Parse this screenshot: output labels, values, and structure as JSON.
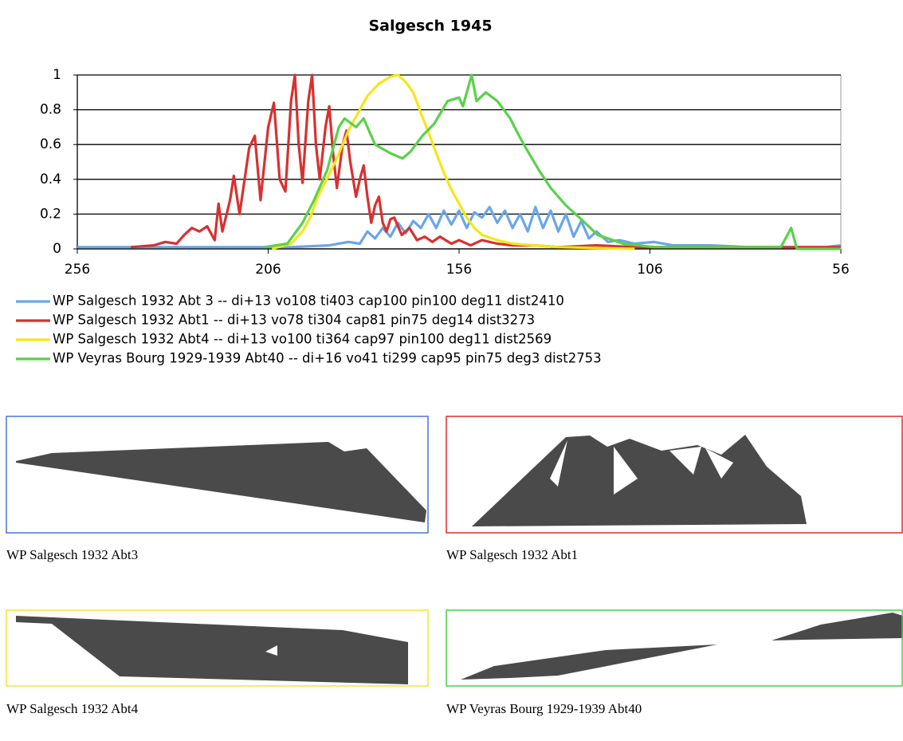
{
  "chart_data": {
    "type": "line",
    "title": "Salgesch 1945",
    "xlim": [
      256,
      56
    ],
    "xticks": [
      256,
      206,
      156,
      106,
      56
    ],
    "ylim": [
      0,
      1
    ],
    "yticks": [
      0,
      0.2,
      0.4,
      0.6,
      0.8,
      1
    ],
    "grid": true,
    "series": [
      {
        "name": "WP Salgesch 1932 Abt 3 -- di+13 vo108 ti403 cap100 pin100 deg11 dist2410",
        "color": "#6aa6e8",
        "x": [
          256,
          230,
          200,
          190,
          185,
          182,
          180,
          178,
          176,
          174,
          172,
          170,
          168,
          166,
          164,
          162,
          160,
          158,
          156,
          154,
          152,
          150,
          148,
          146,
          144,
          142,
          140,
          138,
          136,
          134,
          132,
          130,
          128,
          126,
          124,
          122,
          120,
          117,
          114,
          110,
          105,
          100,
          90,
          80,
          70,
          60,
          56
        ],
        "values": [
          0.01,
          0.01,
          0.01,
          0.02,
          0.04,
          0.03,
          0.1,
          0.06,
          0.12,
          0.07,
          0.15,
          0.09,
          0.16,
          0.12,
          0.2,
          0.12,
          0.22,
          0.14,
          0.22,
          0.12,
          0.21,
          0.18,
          0.24,
          0.15,
          0.22,
          0.12,
          0.2,
          0.1,
          0.24,
          0.12,
          0.22,
          0.1,
          0.2,
          0.07,
          0.16,
          0.06,
          0.1,
          0.04,
          0.05,
          0.03,
          0.04,
          0.02,
          0.02,
          0.01,
          0.01,
          0.01,
          0.02
        ]
      },
      {
        "name": "WP Salgesch 1932 Abt1 -- di+13 vo78 ti304 cap81 pin75 deg14 dist3273",
        "color": "#d93030",
        "x": [
          242,
          236,
          233,
          230,
          228,
          226,
          224,
          222,
          220,
          219,
          218,
          216,
          215,
          213.5,
          211,
          209.5,
          208,
          206,
          204.5,
          203,
          201.5,
          200,
          199,
          198,
          197,
          195.5,
          194.5,
          193.5,
          192.5,
          191,
          190,
          189,
          188,
          186.5,
          185.5,
          184.5,
          183,
          182,
          181,
          180,
          179,
          178,
          177,
          176,
          175,
          174,
          173,
          171,
          169,
          167,
          165,
          163,
          161,
          158,
          156,
          153,
          150,
          146,
          142,
          136,
          130,
          120,
          110,
          100,
          90,
          75,
          62,
          56
        ],
        "values": [
          0.01,
          0.02,
          0.04,
          0.03,
          0.08,
          0.12,
          0.1,
          0.13,
          0.05,
          0.26,
          0.1,
          0.28,
          0.42,
          0.2,
          0.58,
          0.65,
          0.28,
          0.7,
          0.84,
          0.4,
          0.33,
          0.85,
          1.0,
          0.6,
          0.38,
          0.85,
          1.0,
          0.6,
          0.4,
          0.7,
          0.82,
          0.55,
          0.35,
          0.6,
          0.68,
          0.5,
          0.3,
          0.4,
          0.48,
          0.3,
          0.15,
          0.25,
          0.3,
          0.15,
          0.1,
          0.17,
          0.18,
          0.08,
          0.12,
          0.05,
          0.07,
          0.04,
          0.07,
          0.03,
          0.05,
          0.02,
          0.05,
          0.03,
          0.02,
          0.02,
          0.01,
          0.02,
          0.01,
          0.01,
          0.01,
          0.01,
          0.01,
          0.01
        ]
      },
      {
        "name": "WP Salgesch 1932 Abt4 -- di+13 vo100 ti364 cap97 pin100 deg11 dist2569",
        "color": "#f5e61a",
        "x": [
          205,
          200,
          197,
          195,
          193,
          190,
          188,
          185,
          182,
          180,
          177,
          174,
          172,
          170,
          168,
          166,
          164,
          162,
          160,
          158,
          156,
          154,
          152,
          150,
          146,
          142,
          136,
          130,
          120,
          110
        ],
        "values": [
          0,
          0.03,
          0.1,
          0.18,
          0.3,
          0.43,
          0.52,
          0.68,
          0.8,
          0.88,
          0.95,
          0.99,
          1.0,
          0.96,
          0.9,
          0.78,
          0.67,
          0.55,
          0.44,
          0.34,
          0.26,
          0.18,
          0.12,
          0.08,
          0.05,
          0.03,
          0.02,
          0.01,
          0.005,
          0
        ]
      },
      {
        "name": "WP Veyras Bourg 1929-1939 Abt40 -- di+16 vo41 ti299 cap95 pin75 deg3 dist2753",
        "color": "#5ad14a",
        "x": [
          207,
          201,
          197,
          194,
          190.6,
          187.5,
          186,
          183,
          181,
          178,
          174,
          170.8,
          168.7,
          165.6,
          162.5,
          159,
          156,
          155,
          152.7,
          151.4,
          149,
          146,
          142.6,
          140.5,
          138.5,
          135,
          132,
          128,
          124,
          119.7,
          113,
          105,
          71.7,
          69,
          67.5,
          56
        ],
        "values": [
          0.01,
          0.03,
          0.15,
          0.28,
          0.45,
          0.7,
          0.75,
          0.7,
          0.75,
          0.6,
          0.55,
          0.52,
          0.56,
          0.65,
          0.72,
          0.85,
          0.87,
          0.82,
          1.0,
          0.85,
          0.9,
          0.85,
          0.75,
          0.66,
          0.58,
          0.45,
          0.35,
          0.25,
          0.17,
          0.08,
          0.03,
          0.01,
          0.01,
          0.12,
          0,
          0
        ]
      }
    ]
  },
  "panels": [
    {
      "caption": "WP Salgesch 1932 Abt3",
      "color": "#4a72d8"
    },
    {
      "caption": "WP Salgesch 1932 Abt1",
      "color": "#e02a2a"
    },
    {
      "caption": "WP Salgesch 1932 Abt4",
      "color": "#f2e630"
    },
    {
      "caption": "WP Veyras Bourg 1929-1939 Abt40",
      "color": "#44d444"
    }
  ]
}
